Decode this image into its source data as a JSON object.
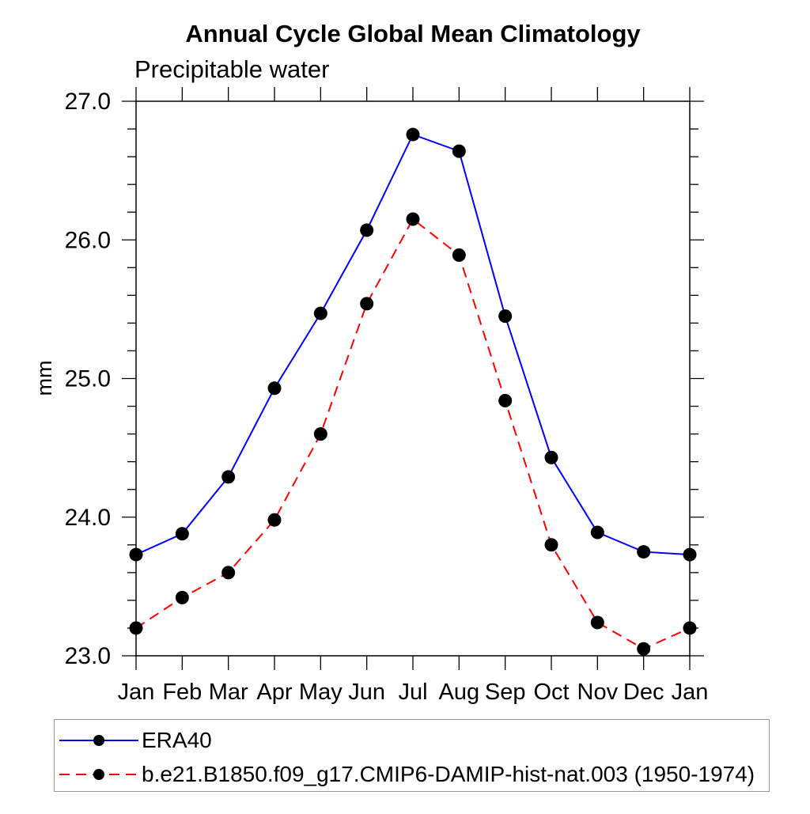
{
  "page": {
    "background": "#ffffff"
  },
  "chart_data": {
    "type": "line",
    "title": "Annual Cycle Global Mean Climatology",
    "subtitle": "Precipitable water",
    "ylabel": "mm",
    "categories": [
      "Jan",
      "Feb",
      "Mar",
      "Apr",
      "May",
      "Jun",
      "Jul",
      "Aug",
      "Sep",
      "Oct",
      "Nov",
      "Dec",
      "Jan"
    ],
    "ylim": [
      23.0,
      27.0
    ],
    "y_major_tick_step": 1.0,
    "y_minor_tick_step": 0.2,
    "y_tick_labels": [
      "23.0",
      "24.0",
      "25.0",
      "26.0",
      "27.0"
    ],
    "grid": false,
    "legend_position": "bottom",
    "marker": {
      "shape": "circle",
      "color": "#000000"
    },
    "axis_color": "#000000",
    "series": [
      {
        "name": "ERA40",
        "color": "#0000ff",
        "line_style": "solid",
        "values": [
          23.73,
          23.88,
          24.29,
          24.93,
          25.47,
          26.07,
          26.76,
          26.64,
          25.45,
          24.43,
          23.89,
          23.75,
          23.73
        ]
      },
      {
        "name": "b.e21.B1850.f09_g17.CMIP6-DAMIP-hist-nat.003 (1950-1974)",
        "color": "#ff0000",
        "line_style": "dashed",
        "values": [
          23.2,
          23.42,
          23.6,
          23.98,
          24.6,
          25.54,
          26.15,
          25.89,
          24.84,
          23.8,
          23.24,
          23.05,
          23.2
        ]
      }
    ]
  }
}
